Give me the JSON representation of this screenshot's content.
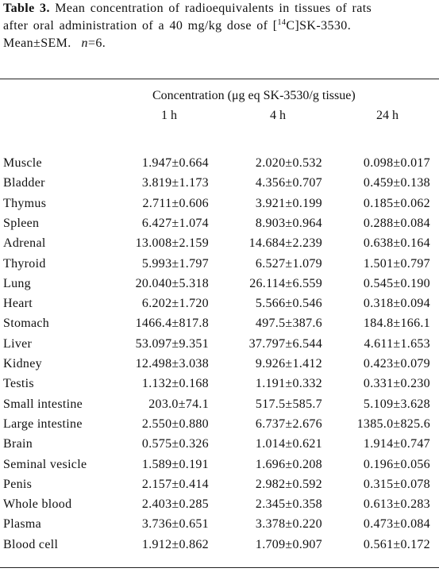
{
  "caption": {
    "label": "Table 3.",
    "line1_text": "Mean concentration of radioequivalents in tissues of rats",
    "line2_pre": "after oral administration of a 40 mg/kg dose of [",
    "line2_sup": "14",
    "line2_post": "C]SK-3530.",
    "line3": "Mean±SEM.",
    "n_label": "n",
    "n_value": "=6."
  },
  "table": {
    "group_header": "Concentration (μg eq SK-3530/g tissue)",
    "columns": [
      "1 h",
      "4 h",
      "24 h"
    ],
    "rows": [
      {
        "tissue": "Muscle",
        "h1": "1.947±0.664",
        "h4": "2.020±0.532",
        "h24": "0.098±0.017"
      },
      {
        "tissue": "Bladder",
        "h1": "3.819±1.173",
        "h4": "4.356±0.707",
        "h24": "0.459±0.138"
      },
      {
        "tissue": "Thymus",
        "h1": "2.711±0.606",
        "h4": "3.921±0.199",
        "h24": "0.185±0.062"
      },
      {
        "tissue": "Spleen",
        "h1": "6.427±1.074",
        "h4": "8.903±0.964",
        "h24": "0.288±0.084"
      },
      {
        "tissue": "Adrenal",
        "h1": "13.008±2.159",
        "h4": "14.684±2.239",
        "h24": "0.638±0.164"
      },
      {
        "tissue": "Thyroid",
        "h1": "5.993±1.797",
        "h4": "6.527±1.079",
        "h24": "1.501±0.797"
      },
      {
        "tissue": "Lung",
        "h1": "20.040±5.318",
        "h4": "26.114±6.559",
        "h24": "0.545±0.190"
      },
      {
        "tissue": "Heart",
        "h1": "6.202±1.720",
        "h4": "5.566±0.546",
        "h24": "0.318±0.094"
      },
      {
        "tissue": "Stomach",
        "h1": "1466.4±817.8",
        "h4": "497.5±387.6",
        "h24": "184.8±166.1"
      },
      {
        "tissue": "Liver",
        "h1": "53.097±9.351",
        "h4": "37.797±6.544",
        "h24": "4.611±1.653"
      },
      {
        "tissue": "Kidney",
        "h1": "12.498±3.038",
        "h4": "9.926±1.412",
        "h24": "0.423±0.079"
      },
      {
        "tissue": "Testis",
        "h1": "1.132±0.168",
        "h4": "1.191±0.332",
        "h24": "0.331±0.230"
      },
      {
        "tissue": "Small intestine",
        "h1": "203.0±74.1",
        "h4": "517.5±585.7",
        "h24": "5.109±3.628"
      },
      {
        "tissue": "Large intestine",
        "h1": "2.550±0.880",
        "h4": "6.737±2.676",
        "h24": "1385.0±825.6"
      },
      {
        "tissue": "Brain",
        "h1": "0.575±0.326",
        "h4": "1.014±0.621",
        "h24": "1.914±0.747"
      },
      {
        "tissue": "Seminal vesicle",
        "h1": "1.589±0.191",
        "h4": "1.696±0.208",
        "h24": "0.196±0.056"
      },
      {
        "tissue": "Penis",
        "h1": "2.157±0.414",
        "h4": "2.982±0.592",
        "h24": "0.315±0.078"
      },
      {
        "tissue": "Whole blood",
        "h1": "2.403±0.285",
        "h4": "2.345±0.358",
        "h24": "0.613±0.283"
      },
      {
        "tissue": "Plasma",
        "h1": "3.736±0.651",
        "h4": "3.378±0.220",
        "h24": "0.473±0.084"
      },
      {
        "tissue": "Blood cell",
        "h1": "1.912±0.862",
        "h4": "1.709±0.907",
        "h24": "0.561±0.172"
      }
    ]
  }
}
